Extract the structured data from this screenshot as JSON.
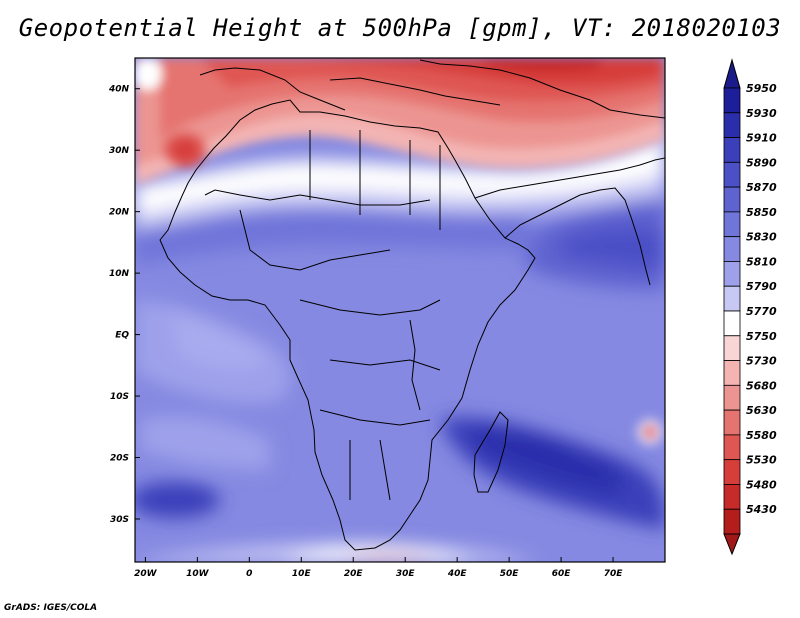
{
  "title": "Geopotential Height at 500hPa [gpm], VT: 2018020103",
  "credit": "GrADS: IGES/COLA",
  "map": {
    "lon_range": [
      -22,
      80
    ],
    "lat_range": [
      -37,
      45
    ],
    "lon_ticks": [
      {
        "value": -20,
        "label": "20W"
      },
      {
        "value": -10,
        "label": "10W"
      },
      {
        "value": 0,
        "label": "0"
      },
      {
        "value": 10,
        "label": "10E"
      },
      {
        "value": 20,
        "label": "20E"
      },
      {
        "value": 30,
        "label": "30E"
      },
      {
        "value": 40,
        "label": "40E"
      },
      {
        "value": 50,
        "label": "50E"
      },
      {
        "value": 60,
        "label": "60E"
      },
      {
        "value": 70,
        "label": "70E"
      }
    ],
    "lat_ticks": [
      {
        "value": 40,
        "label": "40N"
      },
      {
        "value": 30,
        "label": "30N"
      },
      {
        "value": 20,
        "label": "20N"
      },
      {
        "value": 10,
        "label": "10N"
      },
      {
        "value": 0,
        "label": "EQ"
      },
      {
        "value": -10,
        "label": "10S"
      },
      {
        "value": -20,
        "label": "20S"
      },
      {
        "value": -30,
        "label": "30S"
      }
    ]
  },
  "colorbar": {
    "levels": [
      {
        "label": "5950",
        "color": "#1c1f99"
      },
      {
        "label": "5930",
        "color": "#2a2eab"
      },
      {
        "label": "5910",
        "color": "#3b3fba"
      },
      {
        "label": "5890",
        "color": "#4b50c6"
      },
      {
        "label": "5870",
        "color": "#5e63d0"
      },
      {
        "label": "5850",
        "color": "#7075d9"
      },
      {
        "label": "5830",
        "color": "#8589e1"
      },
      {
        "label": "5810",
        "color": "#9ea1ea"
      },
      {
        "label": "5790",
        "color": "#c7c8f4"
      },
      {
        "label": "5770",
        "color": "#ffffff"
      },
      {
        "label": "5750",
        "color": "#f9d6d6"
      },
      {
        "label": "5730",
        "color": "#f3b4b2"
      },
      {
        "label": "5680",
        "color": "#ec9491"
      },
      {
        "label": "5630",
        "color": "#e57370"
      },
      {
        "label": "5580",
        "color": "#df5753"
      },
      {
        "label": "5530",
        "color": "#d63e3a"
      },
      {
        "label": "5480",
        "color": "#c72b29"
      },
      {
        "label": "5430",
        "color": "#b31d1c"
      }
    ],
    "top_arrow_color": "#1a1a8a",
    "bottom_arrow_color": "#a01818"
  }
}
